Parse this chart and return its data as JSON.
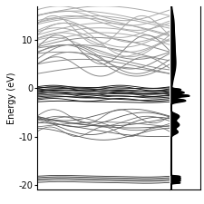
{
  "energy_min": -21,
  "energy_max": 17,
  "yticks": [
    -20,
    -10,
    0,
    10
  ],
  "ylabel": "Energy (eV)",
  "background_color": "#ffffff",
  "num_k": 200,
  "figsize": [
    2.25,
    2.25
  ],
  "dpi": 100
}
